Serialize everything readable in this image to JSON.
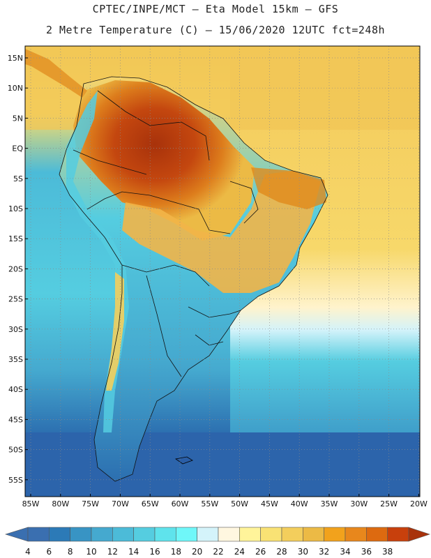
{
  "header": {
    "line1": "CPTEC/INPE/MCT –  Eta Model 15km – GFS",
    "line2": "2 Metre Temperature (C) – 15/06/2020 12UTC fct=248h"
  },
  "map": {
    "lat_labels": [
      "15N",
      "10N",
      "5N",
      "EQ",
      "5S",
      "10S",
      "15S",
      "20S",
      "25S",
      "30S",
      "35S",
      "40S",
      "45S",
      "50S",
      "55S"
    ],
    "lon_labels": [
      "85W",
      "80W",
      "75W",
      "70W",
      "65W",
      "60W",
      "55W",
      "50W",
      "45W",
      "40W",
      "35W",
      "30W",
      "25W",
      "20W"
    ]
  },
  "colorbar": {
    "labels": [
      "4",
      "6",
      "8",
      "10",
      "12",
      "14",
      "16",
      "18",
      "20",
      "22",
      "24",
      "26",
      "28",
      "30",
      "32",
      "34",
      "36",
      "38"
    ],
    "colors": [
      "#3a6fb0",
      "#2c7ab7",
      "#3894c4",
      "#45a9cf",
      "#4cbbd8",
      "#55cde0",
      "#5fe3ec",
      "#6ff7f9",
      "#d4f3fa",
      "#fff7e0",
      "#fff49a",
      "#f9e274",
      "#f3ce5c",
      "#ecba45",
      "#f2a21c",
      "#e8871c",
      "#dd6a10",
      "#c8400c",
      "#a8320b"
    ]
  }
}
